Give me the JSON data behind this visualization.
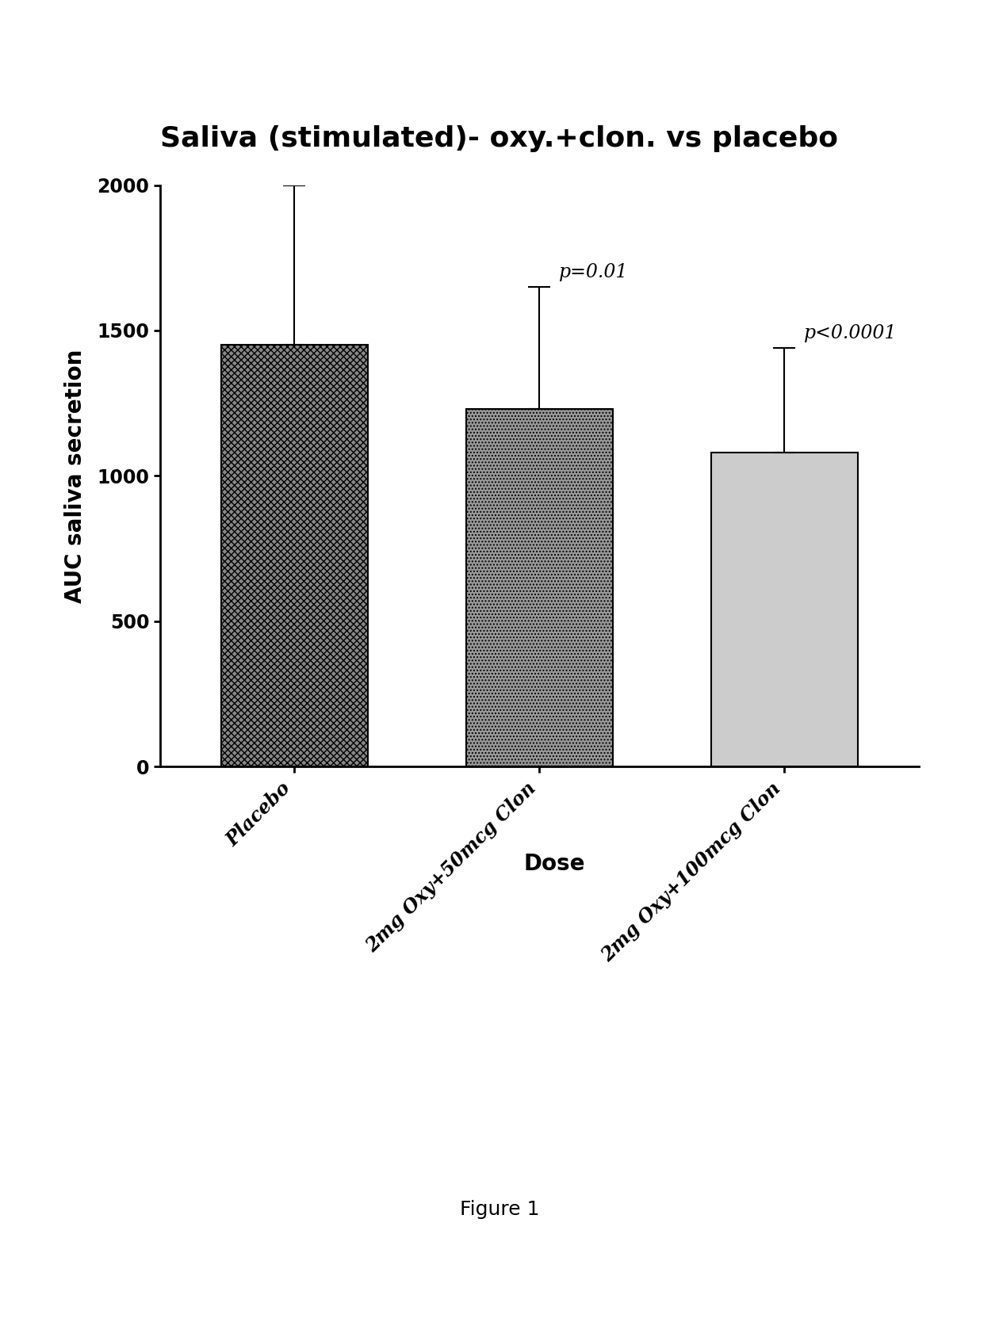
{
  "title": "Saliva (stimulated)- oxy.+clon. vs placebo",
  "ylabel": "AUC saliva secretion",
  "xlabel": "Dose",
  "categories": [
    "Placebo",
    "2mg Oxy+50mcg Clon",
    "2mg Oxy+100mcg Clon"
  ],
  "values": [
    1450,
    1230,
    1080
  ],
  "errors_upper": [
    550,
    420,
    360
  ],
  "errors_lower": [
    0,
    0,
    0
  ],
  "p_values": [
    null,
    "p=0.01",
    "p<0.0001"
  ],
  "ylim": [
    0,
    2000
  ],
  "yticks": [
    0,
    500,
    1000,
    1500,
    2000
  ],
  "bar_width": 0.6,
  "figure_caption": "Figure 1",
  "background_color": "#ffffff",
  "bar_edge_color": "#000000",
  "error_color": "#000000",
  "title_fontsize": 26,
  "axis_label_fontsize": 20,
  "tick_fontsize": 17,
  "p_value_fontsize": 17,
  "caption_fontsize": 18,
  "bar_face_colors": [
    "#888888",
    "#999999",
    "#cccccc"
  ],
  "hatch_patterns": [
    "xxxx",
    "....",
    "===="
  ]
}
